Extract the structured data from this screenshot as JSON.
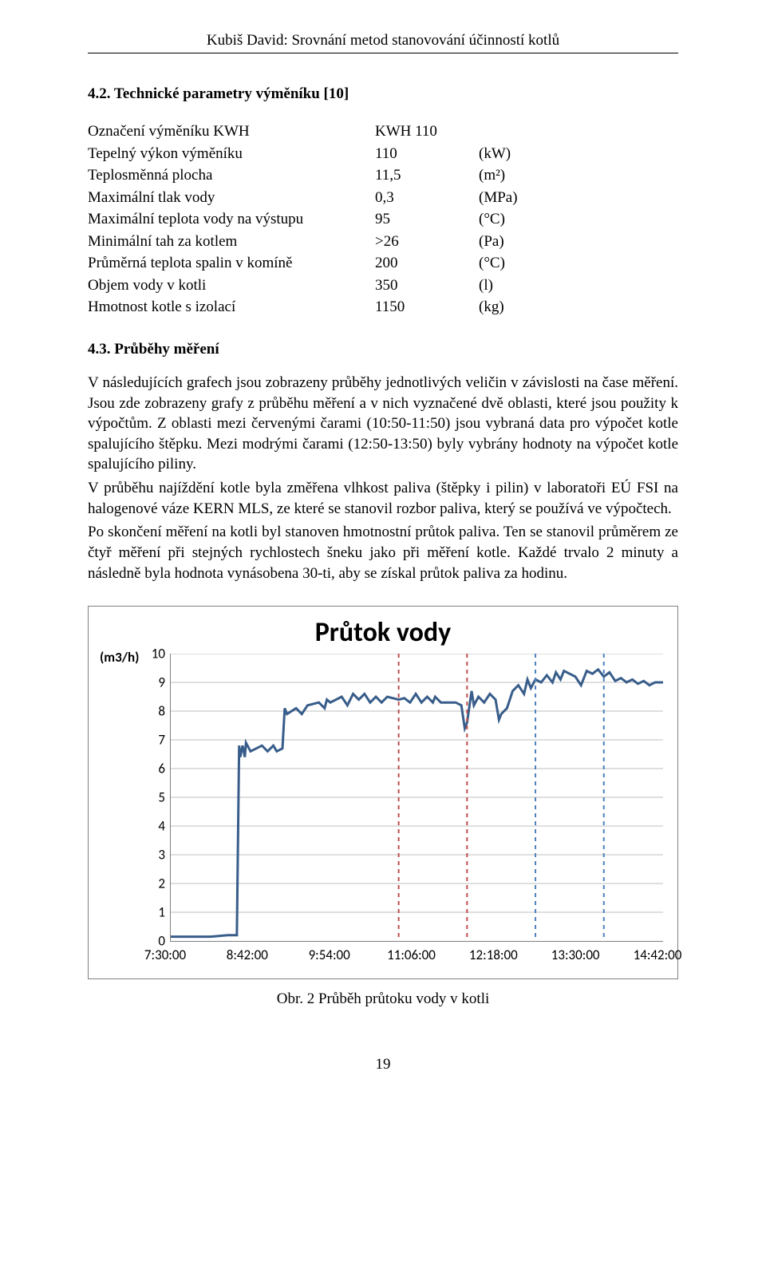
{
  "header": "Kubiš David: Srovnání metod stanovování účinností kotlů",
  "section_4_2": {
    "heading": "4.2. Technické parametry výměníku [10]",
    "rows": [
      {
        "label": "Označení výměníku KWH",
        "value": "KWH 110",
        "unit": ""
      },
      {
        "label": "Tepelný výkon výměníku",
        "value": "110",
        "unit": "(kW)"
      },
      {
        "label": "Teplosměnná plocha",
        "value": "11,5",
        "unit": "(m²)"
      },
      {
        "label": "Maximální tlak vody",
        "value": "0,3",
        "unit": "(MPa)"
      },
      {
        "label": "Maximální teplota vody na výstupu",
        "value": "95",
        "unit": "(°C)"
      },
      {
        "label": "Minimální tah za kotlem",
        "value": ">26",
        "unit": "(Pa)"
      },
      {
        "label": "Průměrná teplota spalin v komíně",
        "value": "200",
        "unit": "(°C)"
      },
      {
        "label": "Objem vody v kotli",
        "value": "350",
        "unit": "(l)"
      },
      {
        "label": "Hmotnost kotle s izolací",
        "value": "1150",
        "unit": "(kg)"
      }
    ]
  },
  "section_4_3": {
    "heading": "4.3. Průběhy měření",
    "paragraphs": [
      "V následujících grafech jsou zobrazeny průběhy jednotlivých veličin v závislosti na čase měření. Jsou zde zobrazeny grafy z průběhu měření a v nich vyznačené dvě oblasti, které jsou použity k výpočtům. Z oblasti mezi červenými čarami (10:50-11:50) jsou vybraná data pro výpočet kotle spalujícího štěpku. Mezi modrými čarami (12:50-13:50) byly vybrány hodnoty na výpočet kotle spalujícího piliny.",
      "V průběhu najíždění kotle byla změřena vlhkost paliva (štěpky i pilin) v laboratoři EÚ FSI na halogenové váze KERN MLS, ze které se stanovil rozbor paliva, který se používá ve výpočtech.",
      "Po skončení měření na kotli byl stanoven hmotnostní průtok paliva. Ten se stanovil průměrem ze čtyř měření při stejných rychlostech šneku jako při měření kotle. Každé trvalo 2 minuty a následně byla hodnota vynásobena 30-ti, aby se získal průtok paliva za hodinu."
    ]
  },
  "chart": {
    "title": "Průtok vody",
    "y_unit_label": "(m3/h)",
    "type": "line",
    "ylim": [
      0,
      10
    ],
    "ytick_step": 1,
    "x_labels": [
      "7:30:00",
      "8:42:00",
      "9:54:00",
      "11:06:00",
      "12:18:00",
      "13:30:00",
      "14:42:00"
    ],
    "x_minutes_range": [
      450,
      882
    ],
    "grid_color": "#bfbfbf",
    "axis_color": "#808080",
    "series_color": "#385d8a",
    "marker_red": "#c0504d",
    "marker_blue": "#4f81bd",
    "background_color": "#ffffff",
    "title_color": "#000000",
    "title_fontsize": 34,
    "label_fontsize": 17,
    "line_width": 3,
    "marker_line_width": 2,
    "marker_dash": "5 5",
    "markers": [
      {
        "minutes": 650,
        "color_key": "marker_red"
      },
      {
        "minutes": 710,
        "color_key": "marker_red"
      },
      {
        "minutes": 770,
        "color_key": "marker_blue"
      },
      {
        "minutes": 830,
        "color_key": "marker_blue"
      }
    ],
    "data": [
      [
        450,
        0.15
      ],
      [
        470,
        0.15
      ],
      [
        485,
        0.15
      ],
      [
        500,
        0.2
      ],
      [
        508,
        0.2
      ],
      [
        510,
        6.8
      ],
      [
        511,
        6.4
      ],
      [
        513,
        6.8
      ],
      [
        515,
        6.4
      ],
      [
        516,
        6.9
      ],
      [
        520,
        6.6
      ],
      [
        525,
        6.7
      ],
      [
        530,
        6.8
      ],
      [
        535,
        6.6
      ],
      [
        540,
        6.8
      ],
      [
        543,
        6.6
      ],
      [
        548,
        6.7
      ],
      [
        550,
        8.1
      ],
      [
        552,
        7.9
      ],
      [
        560,
        8.1
      ],
      [
        565,
        7.9
      ],
      [
        570,
        8.2
      ],
      [
        580,
        8.3
      ],
      [
        585,
        8.1
      ],
      [
        587,
        8.4
      ],
      [
        590,
        8.3
      ],
      [
        600,
        8.5
      ],
      [
        605,
        8.2
      ],
      [
        610,
        8.6
      ],
      [
        615,
        8.4
      ],
      [
        620,
        8.6
      ],
      [
        625,
        8.3
      ],
      [
        630,
        8.5
      ],
      [
        635,
        8.3
      ],
      [
        640,
        8.5
      ],
      [
        650,
        8.4
      ],
      [
        655,
        8.45
      ],
      [
        660,
        8.3
      ],
      [
        665,
        8.6
      ],
      [
        670,
        8.3
      ],
      [
        675,
        8.5
      ],
      [
        680,
        8.3
      ],
      [
        682,
        8.5
      ],
      [
        687,
        8.3
      ],
      [
        700,
        8.3
      ],
      [
        705,
        8.2
      ],
      [
        708,
        7.4
      ],
      [
        710,
        7.6
      ],
      [
        714,
        8.7
      ],
      [
        716,
        8.2
      ],
      [
        720,
        8.5
      ],
      [
        725,
        8.3
      ],
      [
        730,
        8.6
      ],
      [
        735,
        8.4
      ],
      [
        738,
        7.7
      ],
      [
        740,
        7.9
      ],
      [
        745,
        8.1
      ],
      [
        750,
        8.7
      ],
      [
        755,
        8.9
      ],
      [
        760,
        8.6
      ],
      [
        763,
        9.1
      ],
      [
        766,
        8.8
      ],
      [
        770,
        9.1
      ],
      [
        775,
        9.0
      ],
      [
        780,
        9.25
      ],
      [
        785,
        9.0
      ],
      [
        788,
        9.35
      ],
      [
        792,
        9.1
      ],
      [
        795,
        9.4
      ],
      [
        800,
        9.3
      ],
      [
        805,
        9.2
      ],
      [
        810,
        8.9
      ],
      [
        815,
        9.4
      ],
      [
        820,
        9.3
      ],
      [
        825,
        9.45
      ],
      [
        830,
        9.2
      ],
      [
        835,
        9.35
      ],
      [
        840,
        9.05
      ],
      [
        845,
        9.15
      ],
      [
        850,
        9.0
      ],
      [
        855,
        9.1
      ],
      [
        860,
        8.95
      ],
      [
        865,
        9.05
      ],
      [
        870,
        8.9
      ],
      [
        875,
        9.0
      ],
      [
        880,
        9.0
      ],
      [
        882,
        9.0
      ]
    ]
  },
  "figure_caption": "Obr. 2 Průběh průtoku vody v kotli",
  "page_number": "19"
}
